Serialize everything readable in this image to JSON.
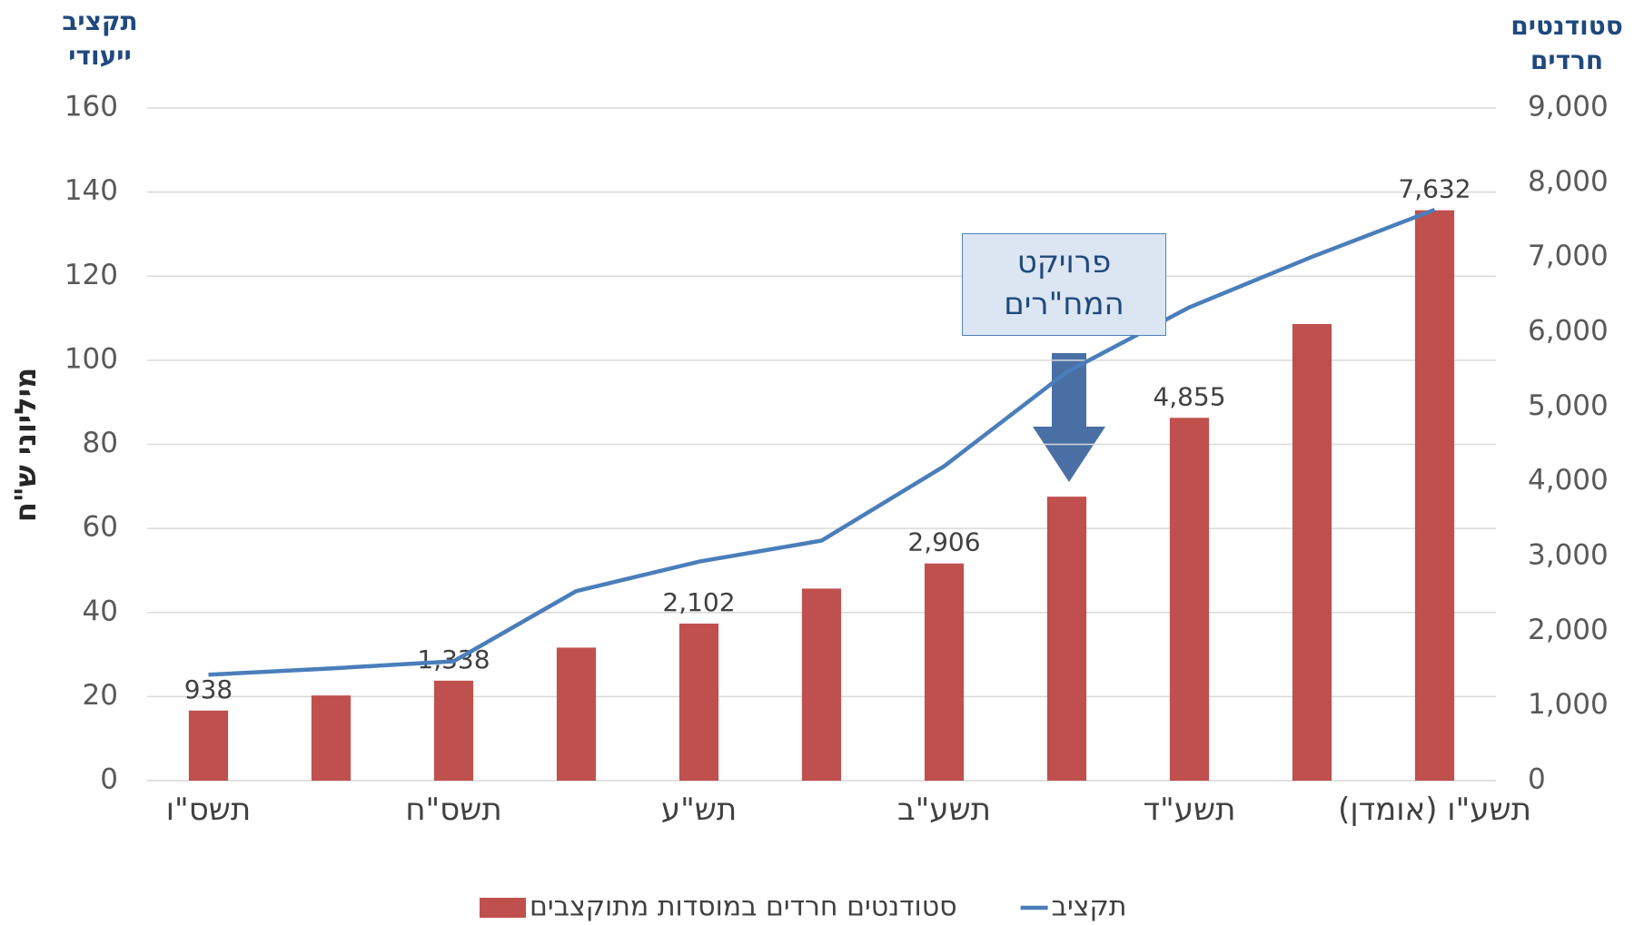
{
  "chart_data": {
    "type": "bar-line",
    "y_title": "תקציב ייעודי",
    "y_axis_label": "מיליוני ש\"ח",
    "y2_title": "סטודנטים חרדים",
    "annotation": "פרויקט המח\"רים",
    "categories": [
      "תשס\"ו",
      null,
      "תשס\"ח",
      null,
      "תש\"ע",
      null,
      "תשע\"ב",
      null,
      "תשע\"ד",
      null,
      "תשע\"ו (אומדן)"
    ],
    "series": [
      {
        "name": "סטודנטים חרדים במוסדות מתוקצבים",
        "type": "bar",
        "axis": "y2",
        "color": "#c0504d",
        "values": [
          938,
          1140,
          1338,
          1780,
          2102,
          2570,
          2906,
          3800,
          4855,
          6110,
          7632
        ],
        "value_labels": [
          "938",
          null,
          "1,338",
          null,
          "2,102",
          null,
          "2,906",
          null,
          "4,855",
          null,
          "7,632"
        ]
      },
      {
        "name": "תקציב",
        "type": "line",
        "axis": "y",
        "color": "#4a7ebb",
        "values": [
          25.2,
          26.7,
          28.4,
          45.1,
          52.1,
          57.1,
          74.8,
          97.2,
          112.6,
          124.6,
          135.8
        ]
      }
    ],
    "ylim": [
      0,
      160
    ],
    "yticks": [
      0,
      20,
      40,
      60,
      80,
      100,
      120,
      140,
      160
    ],
    "y2lim": [
      0,
      9000
    ],
    "y2ticks": [
      0,
      {
        "value": 1000,
        "label": "1,000"
      },
      {
        "value": 2000,
        "label": "2,000"
      },
      {
        "value": 3000,
        "label": "3,000"
      },
      {
        "value": 4000,
        "label": "4,000"
      },
      {
        "value": 5000,
        "label": "5,000"
      },
      {
        "value": 6000,
        "label": "6,000"
      },
      {
        "value": 7000,
        "label": "7,000"
      },
      {
        "value": 8000,
        "label": "8,000"
      },
      {
        "value": 9000,
        "label": "9,000"
      }
    ],
    "grid": true,
    "legend": "bottom"
  }
}
